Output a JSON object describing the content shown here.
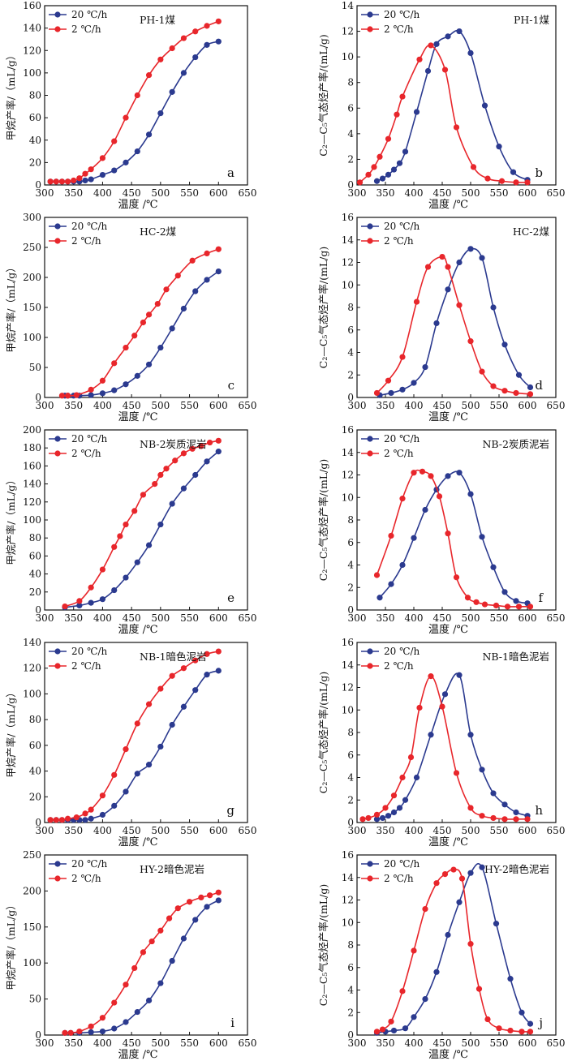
{
  "colors": {
    "slow": "#e8262b",
    "fast": "#2b3a8f",
    "axis": "#111111"
  },
  "chart_data": [
    {
      "id": "a",
      "type": "line",
      "panel_label": "a",
      "title": "PH-1煤",
      "xlabel": "温度 /℃",
      "ylabel": "甲烷产率/（mL/g）",
      "xlim": [
        300,
        650
      ],
      "ylim": [
        0,
        160
      ],
      "xticks": [
        300,
        350,
        400,
        450,
        500,
        550,
        600,
        650
      ],
      "yticks": [
        0,
        20,
        40,
        60,
        80,
        100,
        120,
        140,
        160
      ],
      "series": [
        {
          "name": "20 ℃/h",
          "color": "#2b3a8f",
          "x": [
            310,
            320,
            330,
            340,
            350,
            360,
            370,
            380,
            400,
            420,
            440,
            460,
            480,
            500,
            520,
            540,
            560,
            580,
            600
          ],
          "values": [
            3,
            3,
            3,
            3,
            3,
            3,
            4,
            5,
            9,
            13,
            20,
            30,
            45,
            64,
            83,
            100,
            114,
            125,
            128
          ]
        },
        {
          "name": "2 ℃/h",
          "color": "#e8262b",
          "x": [
            310,
            320,
            330,
            340,
            350,
            360,
            370,
            380,
            400,
            420,
            440,
            460,
            480,
            500,
            520,
            540,
            560,
            580,
            600
          ],
          "values": [
            3,
            3,
            3,
            3,
            4,
            6,
            10,
            14,
            24,
            39,
            60,
            80,
            98,
            112,
            122,
            131,
            137,
            142,
            146
          ]
        }
      ]
    },
    {
      "id": "b",
      "type": "line",
      "panel_label": "b",
      "title": "PH-1煤",
      "xlabel": "温度 /℃",
      "ylabel": "C₂—C₅气态烃产率/(mL/g)",
      "xlim": [
        300,
        650
      ],
      "ylim": [
        0,
        14
      ],
      "xticks": [
        300,
        350,
        400,
        450,
        500,
        550,
        600,
        650
      ],
      "yticks": [
        0,
        2,
        4,
        6,
        8,
        10,
        12,
        14
      ],
      "series": [
        {
          "name": "20 ℃/h",
          "color": "#2b3a8f",
          "x": [
            335,
            345,
            355,
            365,
            375,
            385,
            405,
            425,
            440,
            460,
            480,
            500,
            525,
            550,
            575,
            600
          ],
          "values": [
            0.3,
            0.5,
            0.8,
            1.2,
            1.7,
            2.6,
            5.7,
            8.9,
            11.0,
            11.6,
            12.0,
            10.3,
            6.2,
            3.0,
            1.0,
            0.4
          ]
        },
        {
          "name": "2 ℃/h",
          "color": "#e8262b",
          "x": [
            305,
            320,
            330,
            340,
            355,
            370,
            380,
            410,
            430,
            455,
            475,
            505,
            530,
            555,
            580,
            600
          ],
          "values": [
            0.2,
            0.8,
            1.4,
            2.2,
            3.6,
            5.5,
            6.9,
            9.8,
            10.9,
            9.0,
            4.5,
            1.4,
            0.5,
            0.3,
            0.2,
            0.2
          ]
        }
      ]
    },
    {
      "id": "c",
      "type": "line",
      "panel_label": "c",
      "title": "HC-2煤",
      "xlabel": "温度 /℃",
      "ylabel": "甲烷产率/（mL/g）",
      "xlim": [
        300,
        650
      ],
      "ylim": [
        0,
        300
      ],
      "xticks": [
        300,
        350,
        400,
        450,
        500,
        550,
        600,
        650
      ],
      "yticks": [
        0,
        50,
        100,
        150,
        200,
        250,
        300
      ],
      "series": [
        {
          "name": "20 ℃/h",
          "color": "#2b3a8f",
          "x": [
            335,
            340,
            350,
            360,
            380,
            400,
            420,
            440,
            460,
            480,
            500,
            520,
            540,
            560,
            580,
            600
          ],
          "values": [
            3,
            3,
            3,
            3,
            4,
            7,
            12,
            22,
            36,
            55,
            83,
            115,
            148,
            177,
            196,
            210
          ]
        },
        {
          "name": "2 ℃/h",
          "color": "#e8262b",
          "x": [
            330,
            340,
            355,
            380,
            400,
            420,
            440,
            455,
            470,
            480,
            495,
            510,
            530,
            555,
            580,
            600
          ],
          "values": [
            3,
            3,
            4,
            13,
            28,
            57,
            83,
            103,
            125,
            138,
            156,
            180,
            203,
            228,
            240,
            247
          ]
        }
      ]
    },
    {
      "id": "d",
      "type": "line",
      "panel_label": "d",
      "title": "HC-2煤",
      "xlabel": "温度 /℃",
      "ylabel": "C₂—C₅气态烃产率/(mL/g)",
      "xlim": [
        300,
        650
      ],
      "ylim": [
        0,
        16
      ],
      "xticks": [
        300,
        350,
        400,
        450,
        500,
        550,
        600,
        650
      ],
      "yticks": [
        0,
        2,
        4,
        6,
        8,
        10,
        12,
        14,
        16
      ],
      "series": [
        {
          "name": "20 ℃/h",
          "color": "#2b3a8f",
          "x": [
            340,
            360,
            380,
            400,
            420,
            440,
            460,
            480,
            500,
            520,
            540,
            560,
            585,
            605
          ],
          "values": [
            0.2,
            0.4,
            0.7,
            1.3,
            2.7,
            6.6,
            9.6,
            12.0,
            13.2,
            12.4,
            8.0,
            4.7,
            2.0,
            0.9
          ]
        },
        {
          "name": "2 ℃/h",
          "color": "#e8262b",
          "x": [
            335,
            355,
            380,
            405,
            425,
            450,
            460,
            480,
            500,
            520,
            540,
            560,
            580,
            605
          ],
          "values": [
            0.4,
            1.5,
            3.6,
            8.5,
            11.6,
            12.5,
            11.6,
            8.2,
            5.0,
            2.3,
            1.0,
            0.6,
            0.4,
            0.3
          ]
        }
      ]
    },
    {
      "id": "e",
      "type": "line",
      "panel_label": "e",
      "title": "NB-2炭质泥岩",
      "xlabel": "温度 /℃",
      "ylabel": "甲烷产率/（mL/g）",
      "xlim": [
        300,
        650
      ],
      "ylim": [
        0,
        200
      ],
      "xticks": [
        300,
        350,
        400,
        450,
        500,
        550,
        600,
        650
      ],
      "yticks": [
        0,
        20,
        40,
        60,
        80,
        100,
        120,
        140,
        160,
        180,
        200
      ],
      "series": [
        {
          "name": "20 ℃/h",
          "color": "#2b3a8f",
          "x": [
            335,
            360,
            380,
            400,
            420,
            440,
            460,
            480,
            500,
            520,
            540,
            560,
            580,
            600
          ],
          "values": [
            3,
            5,
            8,
            12,
            22,
            36,
            53,
            72,
            95,
            118,
            135,
            150,
            165,
            176
          ]
        },
        {
          "name": "2 ℃/h",
          "color": "#e8262b",
          "x": [
            335,
            360,
            380,
            400,
            420,
            430,
            440,
            455,
            470,
            490,
            500,
            510,
            525,
            540,
            555,
            570,
            585,
            600
          ],
          "values": [
            4,
            10,
            25,
            45,
            70,
            82,
            95,
            110,
            128,
            140,
            150,
            157,
            166,
            174,
            179,
            182,
            186,
            188
          ]
        }
      ]
    },
    {
      "id": "f",
      "type": "line",
      "panel_label": "f",
      "title": "NB-2炭质泥岩",
      "xlabel": "温度 /℃",
      "ylabel": "C₂—C₅气态烃产率/(mL/g)",
      "xlim": [
        300,
        650
      ],
      "ylim": [
        0,
        16
      ],
      "xticks": [
        300,
        350,
        400,
        450,
        500,
        550,
        600,
        650
      ],
      "yticks": [
        0,
        2,
        4,
        6,
        8,
        10,
        12,
        14,
        16
      ],
      "series": [
        {
          "name": "20 ℃/h",
          "color": "#2b3a8f",
          "x": [
            340,
            360,
            380,
            400,
            420,
            440,
            460,
            480,
            500,
            520,
            540,
            560,
            580,
            600
          ],
          "values": [
            1.1,
            2.3,
            4.0,
            6.4,
            8.9,
            10.7,
            11.9,
            12.2,
            10.3,
            6.5,
            3.8,
            1.6,
            0.8,
            0.6
          ]
        },
        {
          "name": "2 ℃/h",
          "color": "#e8262b",
          "x": [
            335,
            360,
            380,
            400,
            415,
            430,
            445,
            460,
            475,
            495,
            510,
            525,
            545,
            565,
            585,
            605
          ],
          "values": [
            3.1,
            6.6,
            9.9,
            12.2,
            12.3,
            11.9,
            10.1,
            6.8,
            2.9,
            1.1,
            0.7,
            0.5,
            0.4,
            0.3,
            0.3,
            0.3
          ]
        }
      ]
    },
    {
      "id": "g",
      "type": "line",
      "panel_label": "g",
      "title": "NB-1暗色泥岩",
      "xlabel": "温度 /℃",
      "ylabel": "甲烷产率/（mL/g）",
      "xlim": [
        300,
        650
      ],
      "ylim": [
        0,
        140
      ],
      "xticks": [
        300,
        350,
        400,
        450,
        500,
        550,
        600,
        650
      ],
      "yticks": [
        0,
        20,
        40,
        60,
        80,
        100,
        120,
        140
      ],
      "series": [
        {
          "name": "20 ℃/h",
          "color": "#2b3a8f",
          "x": [
            310,
            320,
            330,
            340,
            350,
            360,
            370,
            380,
            400,
            420,
            440,
            460,
            480,
            500,
            520,
            540,
            560,
            580,
            600
          ],
          "values": [
            2,
            2,
            2,
            2,
            2,
            2,
            2,
            3,
            6,
            13,
            24,
            38,
            45,
            59,
            76,
            90,
            103,
            115,
            118
          ]
        },
        {
          "name": "2 ℃/h",
          "color": "#e8262b",
          "x": [
            310,
            320,
            330,
            340,
            355,
            370,
            380,
            400,
            420,
            440,
            460,
            480,
            500,
            520,
            540,
            560,
            580,
            600
          ],
          "values": [
            2,
            2,
            2,
            3,
            4,
            7,
            10,
            21,
            37,
            57,
            77,
            92,
            104,
            114,
            120,
            126,
            131,
            133
          ]
        }
      ]
    },
    {
      "id": "h",
      "type": "line",
      "panel_label": "h",
      "title": "NB-1暗色泥岩",
      "xlabel": "温度 /℃",
      "ylabel": "C₂—C₅气态烃产率/(mL/g)",
      "xlim": [
        300,
        650
      ],
      "ylim": [
        0,
        16
      ],
      "xticks": [
        300,
        350,
        400,
        450,
        500,
        550,
        600,
        650
      ],
      "yticks": [
        0,
        2,
        4,
        6,
        8,
        10,
        12,
        14,
        16
      ],
      "series": [
        {
          "name": "20 ℃/h",
          "color": "#2b3a8f",
          "x": [
            335,
            345,
            355,
            365,
            375,
            385,
            405,
            430,
            455,
            480,
            500,
            520,
            540,
            560,
            580,
            600
          ],
          "values": [
            0.3,
            0.4,
            0.6,
            0.9,
            1.3,
            2.0,
            4.0,
            7.8,
            11.4,
            13.1,
            7.8,
            4.7,
            2.6,
            1.6,
            0.9,
            0.6
          ]
        },
        {
          "name": "2 ℃/h",
          "color": "#e8262b",
          "x": [
            310,
            320,
            335,
            350,
            365,
            380,
            395,
            410,
            430,
            450,
            475,
            500,
            520,
            540,
            560,
            580,
            600
          ],
          "values": [
            0.3,
            0.4,
            0.7,
            1.3,
            2.4,
            4.0,
            5.8,
            10.2,
            13.0,
            10.3,
            4.4,
            1.3,
            0.6,
            0.4,
            0.3,
            0.3,
            0.3
          ]
        }
      ]
    },
    {
      "id": "i",
      "type": "line",
      "panel_label": "i",
      "title": "HY-2暗色泥岩",
      "xlabel": "温度 /℃",
      "ylabel": "甲烷产率/（mL/g）",
      "xlim": [
        300,
        650
      ],
      "ylim": [
        0,
        250
      ],
      "xticks": [
        300,
        350,
        400,
        450,
        500,
        550,
        600,
        650
      ],
      "yticks": [
        0,
        50,
        100,
        150,
        200,
        250
      ],
      "series": [
        {
          "name": "20 ℃/h",
          "color": "#2b3a8f",
          "x": [
            335,
            345,
            360,
            380,
            400,
            420,
            440,
            460,
            480,
            500,
            520,
            540,
            560,
            580,
            600
          ],
          "values": [
            3,
            3,
            3,
            4,
            5,
            9,
            18,
            32,
            48,
            72,
            103,
            134,
            160,
            178,
            187
          ]
        },
        {
          "name": "2 ℃/h",
          "color": "#e8262b",
          "x": [
            335,
            345,
            360,
            380,
            400,
            420,
            440,
            455,
            470,
            485,
            500,
            515,
            530,
            550,
            570,
            585,
            600
          ],
          "values": [
            3,
            3,
            5,
            12,
            24,
            45,
            70,
            93,
            115,
            130,
            145,
            162,
            176,
            185,
            191,
            194,
            198
          ]
        }
      ]
    },
    {
      "id": "j",
      "type": "line",
      "panel_label": "j",
      "title": "HY-2暗色泥岩",
      "xlabel": "温度 /℃",
      "ylabel": "C₂—C₅气态烃产率/(mL/g)",
      "xlim": [
        300,
        650
      ],
      "ylim": [
        0,
        16
      ],
      "xticks": [
        300,
        350,
        400,
        450,
        500,
        550,
        600,
        650
      ],
      "yticks": [
        0,
        2,
        4,
        6,
        8,
        10,
        12,
        14,
        16
      ],
      "series": [
        {
          "name": "20 ℃/h",
          "color": "#2b3a8f",
          "x": [
            335,
            350,
            365,
            385,
            400,
            420,
            440,
            460,
            480,
            500,
            520,
            545,
            570,
            590,
            605
          ],
          "values": [
            0.2,
            0.3,
            0.4,
            0.6,
            1.6,
            3.2,
            5.6,
            8.9,
            11.8,
            14.4,
            14.9,
            9.9,
            5.0,
            2.0,
            1.0
          ]
        },
        {
          "name": "2 ℃/h",
          "color": "#e8262b",
          "x": [
            335,
            345,
            360,
            380,
            400,
            420,
            440,
            455,
            470,
            485,
            500,
            515,
            530,
            550,
            570,
            590,
            605
          ],
          "values": [
            0.3,
            0.5,
            1.2,
            3.9,
            7.5,
            11.2,
            13.5,
            14.3,
            14.7,
            13.9,
            8.1,
            4.1,
            1.4,
            0.6,
            0.4,
            0.3,
            0.3
          ]
        }
      ]
    }
  ]
}
